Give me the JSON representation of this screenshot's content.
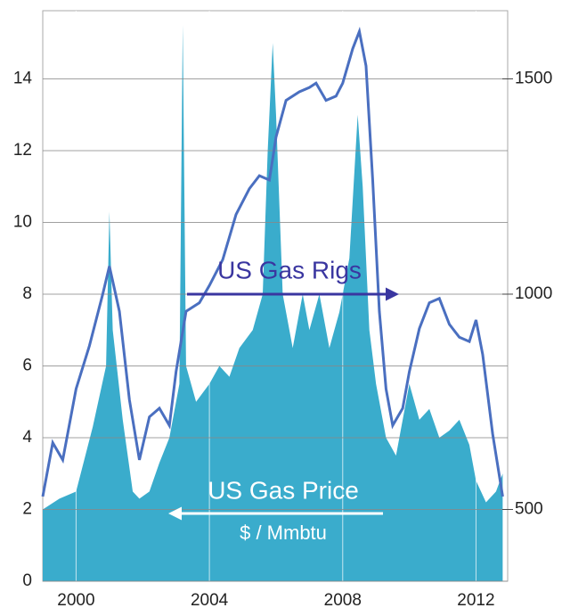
{
  "chart_data": {
    "type": "combo",
    "xlim": [
      1999,
      2012.95
    ],
    "xticks": [
      2000,
      2004,
      2008,
      2012
    ],
    "ylim": [
      0,
      15.9
    ],
    "yticks": [
      0,
      2,
      4,
      6,
      8,
      10,
      12,
      14
    ],
    "y2lim": [
      333.3,
      1658.3
    ],
    "y2ticks": [
      500,
      1000,
      1500
    ],
    "grid": true,
    "series": [
      {
        "name": "US Gas Price",
        "unit_label": "$ / Mmbtu",
        "type": "area",
        "color": "#3aaccc",
        "x": [
          1999,
          1999.5,
          2000,
          2000.5,
          2000.9,
          2001,
          2001.1,
          2001.4,
          2001.7,
          2001.9,
          2002.2,
          2002.5,
          2002.8,
          2003.1,
          2003.2,
          2003.3,
          2003.6,
          2004,
          2004.3,
          2004.6,
          2004.9,
          2005.3,
          2005.6,
          2005.75,
          2005.9,
          2006,
          2006.2,
          2006.5,
          2006.8,
          2007,
          2007.3,
          2007.6,
          2007.9,
          2008.2,
          2008.45,
          2008.6,
          2008.8,
          2009,
          2009.3,
          2009.6,
          2009.8,
          2010,
          2010.3,
          2010.6,
          2010.9,
          2011.2,
          2011.5,
          2011.8,
          2012,
          2012.3,
          2012.6,
          2012.8
        ],
        "values": [
          2,
          2.3,
          2.5,
          4.3,
          6,
          10.3,
          7,
          4.5,
          2.5,
          2.3,
          2.5,
          3.3,
          4,
          5.5,
          15.5,
          6,
          5,
          5.5,
          6,
          5.7,
          6.5,
          7,
          8,
          12,
          15,
          13,
          8,
          6.5,
          8,
          7,
          8,
          6.5,
          7.5,
          9,
          13,
          11,
          7,
          5.5,
          4,
          3.5,
          4.5,
          5.5,
          4.5,
          4.8,
          4,
          4.2,
          4.5,
          3.8,
          2.8,
          2.2,
          2.5,
          3
        ]
      },
      {
        "name": "US Gas Rigs",
        "type": "line",
        "axis": "y2",
        "color": "#4a6fc0",
        "x": [
          1999,
          1999.3,
          1999.6,
          2000,
          2000.4,
          2000.8,
          2001,
          2001.3,
          2001.6,
          2001.9,
          2002.2,
          2002.5,
          2002.8,
          2003,
          2003.3,
          2003.7,
          2004,
          2004.4,
          2004.8,
          2005.2,
          2005.5,
          2005.8,
          2006,
          2006.3,
          2006.7,
          2007,
          2007.2,
          2007.5,
          2007.8,
          2008,
          2008.3,
          2008.5,
          2008.7,
          2008.9,
          2009.1,
          2009.3,
          2009.5,
          2009.8,
          2010,
          2010.3,
          2010.6,
          2010.9,
          2011.2,
          2011.5,
          2011.8,
          2012,
          2012.2,
          2012.5,
          2012.8
        ],
        "values": [
          530,
          655,
          615,
          780,
          880,
          1000,
          1065,
          960,
          755,
          615,
          715,
          735,
          695,
          820,
          960,
          980,
          1020,
          1080,
          1185,
          1245,
          1275,
          1265,
          1365,
          1450,
          1470,
          1480,
          1490,
          1450,
          1460,
          1490,
          1570,
          1610,
          1530,
          1265,
          960,
          780,
          695,
          735,
          820,
          920,
          980,
          990,
          930,
          900,
          890,
          940,
          860,
          675,
          530
        ]
      }
    ]
  }
}
